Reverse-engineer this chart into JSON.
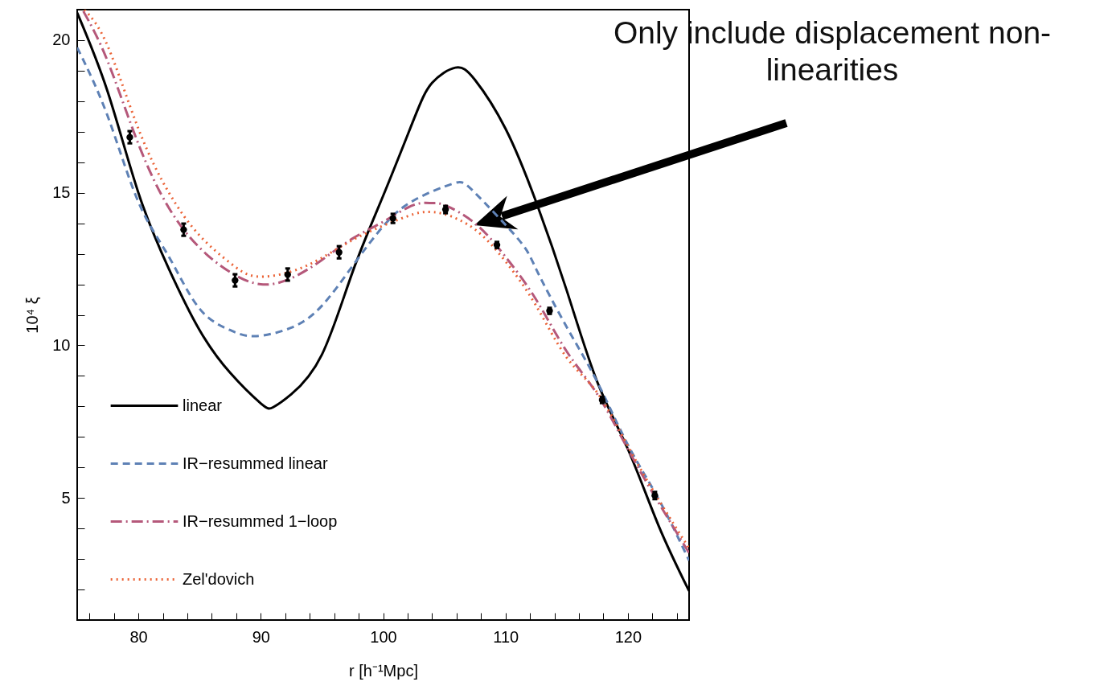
{
  "chart_data": {
    "type": "line",
    "xlabel": "r [h⁻¹Mpc]",
    "ylabel": "10⁴ ξ",
    "xlim": [
      75,
      125
    ],
    "ylim": [
      1,
      21
    ],
    "xticks": [
      {
        "value": 76,
        "label": null
      },
      {
        "value": 78,
        "label": null
      },
      80,
      {
        "value": 82,
        "label": null
      },
      {
        "value": 84,
        "label": null
      },
      {
        "value": 86,
        "label": null
      },
      {
        "value": 88,
        "label": null
      },
      90,
      {
        "value": 92,
        "label": null
      },
      {
        "value": 94,
        "label": null
      },
      {
        "value": 96,
        "label": null
      },
      {
        "value": 98,
        "label": null
      },
      100,
      {
        "value": 102,
        "label": null
      },
      {
        "value": 104,
        "label": null
      },
      {
        "value": 106,
        "label": null
      },
      {
        "value": 108,
        "label": null
      },
      110,
      {
        "value": 112,
        "label": null
      },
      {
        "value": 114,
        "label": null
      },
      {
        "value": 116,
        "label": null
      },
      {
        "value": 118,
        "label": null
      },
      120,
      {
        "value": 122,
        "label": null
      },
      {
        "value": 124,
        "label": null
      }
    ],
    "yticks": [
      {
        "value": 2,
        "label": null
      },
      {
        "value": 3,
        "label": null
      },
      {
        "value": 4,
        "label": null
      },
      5,
      {
        "value": 6,
        "label": null
      },
      {
        "value": 7,
        "label": null
      },
      {
        "value": 8,
        "label": null
      },
      {
        "value": 9,
        "label": null
      },
      10,
      {
        "value": 11,
        "label": null
      },
      {
        "value": 12,
        "label": null
      },
      {
        "value": 13,
        "label": null
      },
      {
        "value": 14,
        "label": null
      },
      15,
      {
        "value": 16,
        "label": null
      },
      {
        "value": 17,
        "label": null
      },
      {
        "value": 18,
        "label": null
      },
      {
        "value": 19,
        "label": null
      },
      20
    ],
    "legend": "bottom left",
    "grid": false,
    "annotations": [
      "Only include displacement non-linearities"
    ],
    "series": [
      {
        "name": "linear",
        "color": "#000000",
        "line_style": "solid",
        "x": [
          75,
          77.5,
          80,
          82.5,
          85,
          87.5,
          90,
          91,
          92.5,
          95,
          97.5,
          100,
          102.5,
          104,
          105.9,
          107.5,
          110,
          112.5,
          115,
          117.5,
          120,
          122.5,
          125
        ],
        "values": [
          20.9,
          18.3,
          15.0,
          12.5,
          10.5,
          9.1,
          8.1,
          7.97,
          8.4,
          9.7,
          12.4,
          14.9,
          17.4,
          18.6,
          19.1,
          18.7,
          17.1,
          14.7,
          11.8,
          8.8,
          6.6,
          4.1,
          1.95
        ]
      },
      {
        "name": "IR−resummed linear",
        "color": "#5e81b5",
        "line_style": "dashed",
        "x": [
          75,
          77.5,
          80,
          82.5,
          85,
          87.5,
          89.5,
          92.5,
          95,
          97.5,
          100,
          102.5,
          105.7,
          107.5,
          111,
          112.5,
          115,
          117.5,
          120,
          122.5,
          125
        ],
        "values": [
          19.76,
          17.5,
          14.7,
          12.9,
          11.2,
          10.5,
          10.3,
          10.58,
          11.3,
          12.6,
          13.9,
          14.75,
          15.3,
          15.0,
          13.5,
          12.5,
          10.6,
          8.8,
          6.74,
          4.97,
          2.95
        ]
      },
      {
        "name": "IR−resummed 1−loop",
        "color": "#b5587a",
        "line_style": "dashdot",
        "x": [
          75.5,
          77.5,
          80,
          82.5,
          85,
          87.5,
          90,
          92.5,
          95,
          97.5,
          100,
          102.5,
          104,
          105,
          107.5,
          110,
          112.5,
          115,
          117.5,
          120,
          122.5,
          125
        ],
        "values": [
          20.95,
          19.3,
          16.6,
          14.5,
          13.2,
          12.4,
          12.0,
          12.2,
          12.8,
          13.5,
          14.05,
          14.6,
          14.66,
          14.6,
          14.0,
          12.9,
          11.5,
          9.8,
          8.4,
          6.6,
          4.85,
          3.2
        ]
      },
      {
        "name": "Zel'dovich",
        "color": "#eb6235",
        "line_style": "dotted",
        "x": [
          75.6,
          77.5,
          80,
          82.5,
          85,
          87.5,
          89.6,
          92.5,
          95,
          97.5,
          100,
          102.5,
          103.6,
          105,
          107.5,
          110,
          112.5,
          115,
          117.5,
          120,
          122.5,
          125
        ],
        "values": [
          21.0,
          19.8,
          17.1,
          15.0,
          13.6,
          12.7,
          12.26,
          12.42,
          12.87,
          13.45,
          13.92,
          14.3,
          14.37,
          14.3,
          13.8,
          12.75,
          11.3,
          9.6,
          8.45,
          6.7,
          4.95,
          3.35
        ]
      },
      {
        "type": "scatter",
        "color": "#000000",
        "marker": "circle",
        "x": [
          79.3,
          83.7,
          87.9,
          92.2,
          96.4,
          100.8,
          105.1,
          109.3,
          113.6,
          117.9,
          122.2
        ],
        "values": [
          16.82,
          13.79,
          12.13,
          12.32,
          13.05,
          14.16,
          14.45,
          13.29,
          11.13,
          8.21,
          5.08
        ],
        "errors": [
          0.2,
          0.2,
          0.2,
          0.2,
          0.2,
          0.15,
          0.12,
          0.1,
          0.1,
          0.1,
          0.12
        ]
      }
    ]
  }
}
